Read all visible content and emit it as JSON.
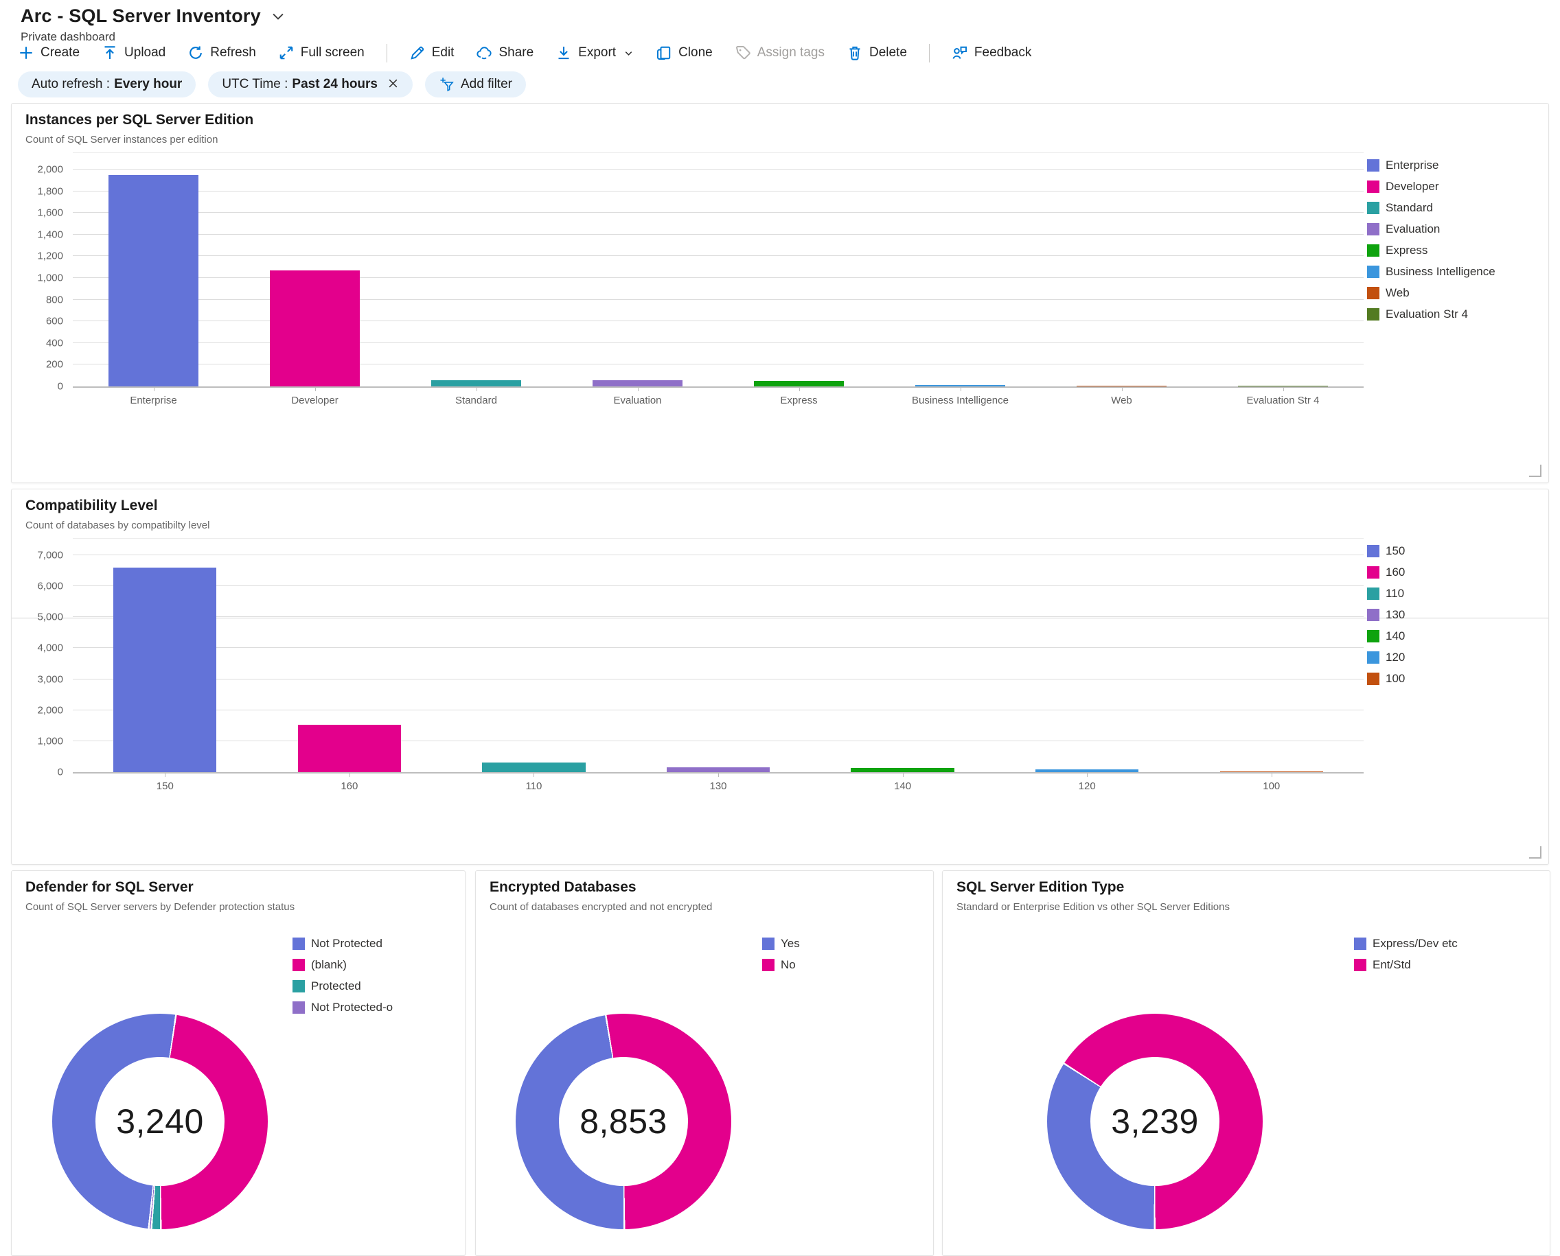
{
  "header": {
    "title": "Arc - SQL Server Inventory",
    "subtitle": "Private dashboard"
  },
  "toolbar": {
    "items": [
      {
        "label": "Create"
      },
      {
        "label": "Upload"
      },
      {
        "label": "Refresh"
      },
      {
        "label": "Full screen"
      },
      {
        "label": "Edit"
      },
      {
        "label": "Share"
      },
      {
        "label": "Export"
      },
      {
        "label": "Clone"
      },
      {
        "label": "Assign tags"
      },
      {
        "label": "Delete"
      },
      {
        "label": "Feedback"
      }
    ]
  },
  "filters": {
    "auto_refresh": {
      "label": "Auto refresh :",
      "value": "Every hour"
    },
    "utc_time": {
      "label": "UTC Time :",
      "value": "Past 24 hours"
    },
    "add_filter_label": "Add filter"
  },
  "colors": {
    "accent": "#0078d4",
    "periwinkle": "#6373D8",
    "magenta": "#E3008C",
    "teal": "#2AA0A2",
    "purple": "#8F6FC8",
    "green": "#0EA30E",
    "light_blue": "#3B96DD",
    "orange": "#C2500F",
    "olive": "#537B21"
  },
  "chart_data": [
    {
      "id": "editions",
      "type": "bar",
      "title": "Instances per SQL Server Edition",
      "subtitle": "Count of SQL Server instances per edition",
      "categories": [
        "Enterprise",
        "Developer",
        "Standard",
        "Evaluation",
        "Express",
        "Business Intelligence",
        "Web",
        "Evaluation Str 4"
      ],
      "values": [
        1950,
        1070,
        60,
        55,
        48,
        12,
        3,
        2
      ],
      "colors": [
        "#6373D8",
        "#E3008C",
        "#2AA0A2",
        "#8F6FC8",
        "#0EA30E",
        "#3B96DD",
        "#C2500F",
        "#537B21"
      ],
      "ylim": [
        0,
        2000
      ],
      "yticks": [
        "0",
        "200",
        "400",
        "600",
        "800",
        "1,000",
        "1,200",
        "1,400",
        "1,600",
        "1,800",
        "2,000"
      ],
      "grid": true,
      "legend_position": "right",
      "legend": [
        "Enterprise",
        "Developer",
        "Standard",
        "Evaluation",
        "Express",
        "Business Intelligence",
        "Web",
        "Evaluation Str 4"
      ]
    },
    {
      "id": "compat",
      "type": "bar",
      "title": "Compatibility Level",
      "subtitle": "Count of databases by compatibilty level",
      "categories": [
        "150",
        "160",
        "110",
        "130",
        "140",
        "120",
        "100"
      ],
      "values": [
        6600,
        1520,
        300,
        160,
        130,
        100,
        25
      ],
      "colors": [
        "#6373D8",
        "#E3008C",
        "#2AA0A2",
        "#8F6FC8",
        "#0EA30E",
        "#3B96DD",
        "#C2500F"
      ],
      "ylim": [
        0,
        7000
      ],
      "yticks": [
        "0",
        "1,000",
        "2,000",
        "3,000",
        "4,000",
        "5,000",
        "6,000",
        "7,000"
      ],
      "grid": true,
      "legend_position": "right",
      "legend": [
        "150",
        "160",
        "110",
        "130",
        "140",
        "120",
        "100"
      ]
    },
    {
      "id": "defender",
      "type": "donut",
      "title": "Defender for SQL Server",
      "subtitle": "Count of SQL Server servers by Defender protection status",
      "center_value": "3,240",
      "start_angle": 9,
      "slices": [
        {
          "label": "(blank)",
          "pct": 47.5,
          "color": "#E3008C"
        },
        {
          "label": "Protected",
          "pct": 1.4,
          "color": "#2AA0A2"
        },
        {
          "label": "Not Protected-o",
          "pct": 0.4,
          "color": "#8F6FC8"
        },
        {
          "label": "Not Protected",
          "pct": 50.7,
          "color": "#6373D8"
        }
      ],
      "legend": [
        {
          "label": "Not Protected",
          "color": "#6373D8"
        },
        {
          "label": "(blank)",
          "color": "#E3008C"
        },
        {
          "label": "Protected",
          "color": "#2AA0A2"
        },
        {
          "label": "Not Protected-o",
          "color": "#8F6FC8"
        }
      ]
    },
    {
      "id": "encrypted",
      "type": "donut",
      "title": "Encrypted Databases",
      "subtitle": "Count of databases encrypted and not encrypted",
      "center_value": "8,853",
      "start_angle": -9,
      "slices": [
        {
          "label": "No",
          "pct": 52.5,
          "color": "#E3008C"
        },
        {
          "label": "Yes",
          "pct": 47.5,
          "color": "#6373D8"
        }
      ],
      "legend": [
        {
          "label": "Yes",
          "color": "#6373D8"
        },
        {
          "label": "No",
          "color": "#E3008C"
        }
      ]
    },
    {
      "id": "edition_type",
      "type": "donut",
      "title": "SQL Server Edition Type",
      "subtitle": "Standard or Enterprise Edition vs other SQL Server Editions",
      "center_value": "3,239",
      "start_angle": -57,
      "slices": [
        {
          "label": "Ent/Std",
          "pct": 66,
          "color": "#E3008C"
        },
        {
          "label": "Express/Dev etc",
          "pct": 34,
          "color": "#6373D8"
        }
      ],
      "legend": [
        {
          "label": "Express/Dev etc",
          "color": "#6373D8"
        },
        {
          "label": "Ent/Std",
          "color": "#E3008C"
        }
      ]
    }
  ]
}
